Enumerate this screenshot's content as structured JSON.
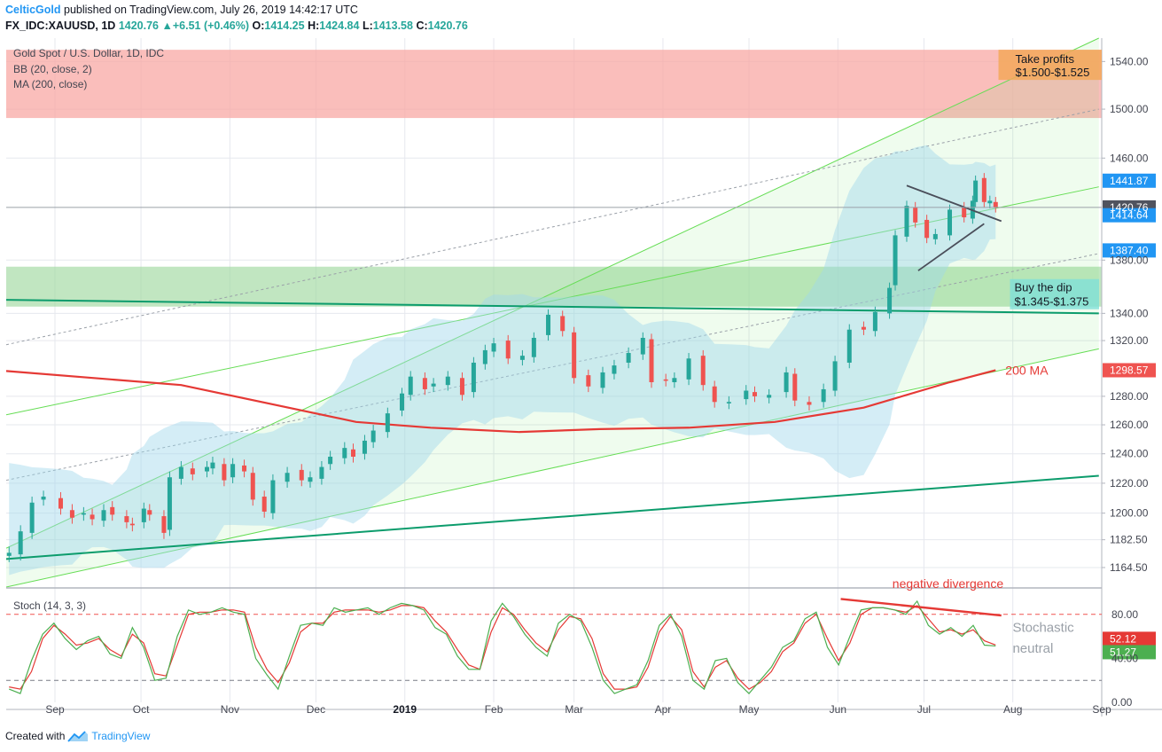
{
  "header": {
    "author": "CelticGold",
    "published": "published on TradingView.com, July 26, 2019 14:42:17 UTC",
    "symbol": "FX_IDC:XAUUSD, 1D",
    "last": "1420.76",
    "change": "+6.51 (+0.46%)",
    "open_label": "O:",
    "open": "1414.25",
    "high_label": "H:",
    "high": "1424.84",
    "low_label": "L:",
    "low": "1413.58",
    "close_label": "C:",
    "close": "1420.76"
  },
  "legend": {
    "title": "Gold Spot / U.S. Dollar, 1D, IDC",
    "bb": "BB (20, close, 2)",
    "ma": "MA (200, close)",
    "stoch": "Stoch (14, 3, 3)"
  },
  "footer": {
    "created_with": "Created with",
    "brand": "TradingView"
  },
  "colors": {
    "up": "#26a69a",
    "down": "#ef5350",
    "ma": "#e53935",
    "channel": "#66dd55",
    "support": "#0c9c6c",
    "bb_fill": "#9fd6ea",
    "take_profit_zone": "#f8a8a4",
    "buy_zone": "#9fd8a0",
    "stoch_k": "#4caf50",
    "stoch_d": "#e53935"
  },
  "annotations": {
    "take_profit_title": "Take profits",
    "take_profit_range": "$1.500-$1.525",
    "buy_dip_title": "Buy the dip",
    "buy_dip_range": "$1.345-$1.375",
    "ma_label": "200 MA",
    "divergence": "negative divergence",
    "stoch_note_1": "Stochastic",
    "stoch_note_2": "neutral"
  },
  "chart_data": {
    "type": "candlestick",
    "title": "Gold Spot / U.S. Dollar, 1D, IDC",
    "x_axis": {
      "range": [
        "2018-08-15",
        "2019-09-01"
      ],
      "tick_labels": [
        {
          "date": "2018-09-01",
          "label": "Sep"
        },
        {
          "date": "2018-10-01",
          "label": "Oct"
        },
        {
          "date": "2018-11-01",
          "label": "Nov"
        },
        {
          "date": "2018-12-01",
          "label": "Dec"
        },
        {
          "date": "2019-01-01",
          "label": "2019",
          "bold": true
        },
        {
          "date": "2019-02-01",
          "label": "Feb"
        },
        {
          "date": "2019-03-01",
          "label": "Mar"
        },
        {
          "date": "2019-04-01",
          "label": "Apr"
        },
        {
          "date": "2019-05-01",
          "label": "May"
        },
        {
          "date": "2019-06-01",
          "label": "Jun"
        },
        {
          "date": "2019-07-01",
          "label": "Jul"
        },
        {
          "date": "2019-08-01",
          "label": "Aug"
        },
        {
          "date": "2019-09-01",
          "label": "Sep"
        }
      ]
    },
    "y_axis": {
      "scale": "log",
      "range": [
        1152,
        1560
      ],
      "tick_labels": [
        "1540.00",
        "1500.00",
        "1460.00",
        "1380.00",
        "1340.00",
        "1320.00",
        "1280.00",
        "1260.00",
        "1240.00",
        "1220.00",
        "1200.00",
        "1182.50",
        "1164.50"
      ]
    },
    "price_badges": [
      {
        "value": "1441.87",
        "kind": "blue"
      },
      {
        "value": "1420.76",
        "kind": "grey"
      },
      {
        "value": "1414.64",
        "kind": "blue"
      },
      {
        "value": "1387.40",
        "kind": "blue"
      },
      {
        "value": "1298.57",
        "kind": "red"
      }
    ],
    "candles_close": [
      [
        "2018-08-16",
        1174
      ],
      [
        "2018-08-20",
        1188
      ],
      [
        "2018-08-24",
        1207
      ],
      [
        "2018-08-28",
        1211
      ],
      [
        "2018-09-03",
        1203
      ],
      [
        "2018-09-07",
        1197
      ],
      [
        "2018-09-11",
        1200
      ],
      [
        "2018-09-14",
        1196
      ],
      [
        "2018-09-18",
        1202
      ],
      [
        "2018-09-21",
        1199
      ],
      [
        "2018-09-26",
        1194
      ],
      [
        "2018-09-28",
        1192
      ],
      [
        "2018-10-02",
        1203
      ],
      [
        "2018-10-04",
        1199
      ],
      [
        "2018-10-09",
        1187
      ],
      [
        "2018-10-11",
        1224
      ],
      [
        "2018-10-15",
        1231
      ],
      [
        "2018-10-19",
        1226
      ],
      [
        "2018-10-24",
        1231
      ],
      [
        "2018-10-26",
        1234
      ],
      [
        "2018-10-30",
        1222
      ],
      [
        "2018-11-02",
        1233
      ],
      [
        "2018-11-06",
        1228
      ],
      [
        "2018-11-09",
        1209
      ],
      [
        "2018-11-13",
        1201
      ],
      [
        "2018-11-16",
        1222
      ],
      [
        "2018-11-21",
        1227
      ],
      [
        "2018-11-26",
        1222
      ],
      [
        "2018-11-29",
        1224
      ],
      [
        "2018-12-03",
        1231
      ],
      [
        "2018-12-06",
        1238
      ],
      [
        "2018-12-11",
        1244
      ],
      [
        "2018-12-14",
        1238
      ],
      [
        "2018-12-18",
        1249
      ],
      [
        "2018-12-21",
        1256
      ],
      [
        "2018-12-26",
        1268
      ],
      [
        "2018-12-31",
        1282
      ],
      [
        "2019-01-03",
        1294
      ],
      [
        "2019-01-08",
        1285
      ],
      [
        "2019-01-11",
        1289
      ],
      [
        "2019-01-16",
        1294
      ],
      [
        "2019-01-21",
        1281
      ],
      [
        "2019-01-25",
        1304
      ],
      [
        "2019-01-29",
        1313
      ],
      [
        "2019-02-01",
        1318
      ],
      [
        "2019-02-06",
        1307
      ],
      [
        "2019-02-11",
        1309
      ],
      [
        "2019-02-15",
        1322
      ],
      [
        "2019-02-20",
        1339
      ],
      [
        "2019-02-25",
        1327
      ],
      [
        "2019-03-01",
        1293
      ],
      [
        "2019-03-06",
        1287
      ],
      [
        "2019-03-11",
        1297
      ],
      [
        "2019-03-15",
        1302
      ],
      [
        "2019-03-20",
        1311
      ],
      [
        "2019-03-25",
        1322
      ],
      [
        "2019-03-28",
        1290
      ],
      [
        "2019-04-02",
        1291
      ],
      [
        "2019-04-05",
        1293
      ],
      [
        "2019-04-10",
        1307
      ],
      [
        "2019-04-15",
        1288
      ],
      [
        "2019-04-19",
        1276
      ],
      [
        "2019-04-24",
        1276
      ],
      [
        "2019-04-30",
        1284
      ],
      [
        "2019-05-03",
        1280
      ],
      [
        "2019-05-08",
        1281
      ],
      [
        "2019-05-14",
        1297
      ],
      [
        "2019-05-17",
        1277
      ],
      [
        "2019-05-22",
        1274
      ],
      [
        "2019-05-27",
        1285
      ],
      [
        "2019-05-31",
        1305
      ],
      [
        "2019-06-05",
        1328
      ],
      [
        "2019-06-10",
        1328
      ],
      [
        "2019-06-14",
        1341
      ],
      [
        "2019-06-19",
        1359
      ],
      [
        "2019-06-21",
        1399
      ],
      [
        "2019-06-25",
        1422
      ],
      [
        "2019-06-28",
        1409
      ],
      [
        "2019-07-02",
        1397
      ],
      [
        "2019-07-05",
        1400
      ],
      [
        "2019-07-10",
        1419
      ],
      [
        "2019-07-15",
        1413
      ],
      [
        "2019-07-18",
        1426
      ],
      [
        "2019-07-19",
        1442
      ],
      [
        "2019-07-22",
        1425
      ],
      [
        "2019-07-24",
        1426
      ],
      [
        "2019-07-26",
        1420.76
      ]
    ],
    "overlays": {
      "ma200": [
        [
          "2018-08-15",
          1298
        ],
        [
          "2018-10-15",
          1288
        ],
        [
          "2018-12-15",
          1262
        ],
        [
          "2019-01-10",
          1258
        ],
        [
          "2019-02-10",
          1255
        ],
        [
          "2019-03-10",
          1257
        ],
        [
          "2019-04-10",
          1258
        ],
        [
          "2019-05-10",
          1262
        ],
        [
          "2019-06-10",
          1272
        ],
        [
          "2019-07-10",
          1290
        ],
        [
          "2019-07-26",
          1298.57
        ]
      ],
      "support_upper": [
        [
          "2018-08-15",
          1350
        ],
        [
          "2019-08-31",
          1340
        ]
      ],
      "support_lower": [
        [
          "2018-08-15",
          1170
        ],
        [
          "2019-08-31",
          1225
        ]
      ],
      "take_profit_zone": [
        1500,
        1525
      ],
      "buy_the_dip_zone": [
        1345,
        1375
      ]
    },
    "stoch": {
      "title": "Stoch (14, 3, 3)",
      "ylim": [
        0,
        100
      ],
      "levels": [
        80,
        20
      ],
      "tick_labels": [
        "80.00",
        "40.00",
        "0.00"
      ],
      "k_last": "51.27",
      "d_last": "52.12",
      "k": [
        12,
        8,
        38,
        62,
        72,
        58,
        48,
        56,
        60,
        44,
        40,
        68,
        50,
        20,
        22,
        60,
        84,
        80,
        82,
        86,
        82,
        80,
        40,
        25,
        12,
        42,
        70,
        72,
        70,
        86,
        82,
        84,
        86,
        80,
        86,
        90,
        88,
        84,
        68,
        62,
        42,
        30,
        30,
        74,
        90,
        78,
        62,
        50,
        42,
        72,
        80,
        74,
        50,
        20,
        8,
        12,
        16,
        38,
        70,
        80,
        60,
        20,
        12,
        38,
        40,
        18,
        8,
        20,
        32,
        50,
        56,
        76,
        82,
        50,
        34,
        60,
        84,
        86,
        86,
        84,
        80,
        92,
        70,
        62,
        68,
        60,
        70,
        52,
        51.27
      ],
      "d": [
        14,
        12,
        28,
        58,
        70,
        62,
        52,
        54,
        58,
        48,
        42,
        62,
        54,
        26,
        24,
        52,
        80,
        82,
        82,
        84,
        84,
        82,
        50,
        30,
        18,
        36,
        64,
        72,
        72,
        82,
        84,
        84,
        84,
        82,
        84,
        88,
        88,
        86,
        74,
        64,
        48,
        34,
        30,
        64,
        86,
        80,
        66,
        54,
        46,
        66,
        78,
        76,
        58,
        26,
        12,
        12,
        14,
        32,
        64,
        78,
        66,
        28,
        14,
        32,
        38,
        22,
        12,
        18,
        28,
        46,
        54,
        72,
        80,
        58,
        38,
        54,
        80,
        86,
        86,
        84,
        82,
        88,
        76,
        64,
        66,
        62,
        66,
        56,
        52.12
      ]
    }
  }
}
